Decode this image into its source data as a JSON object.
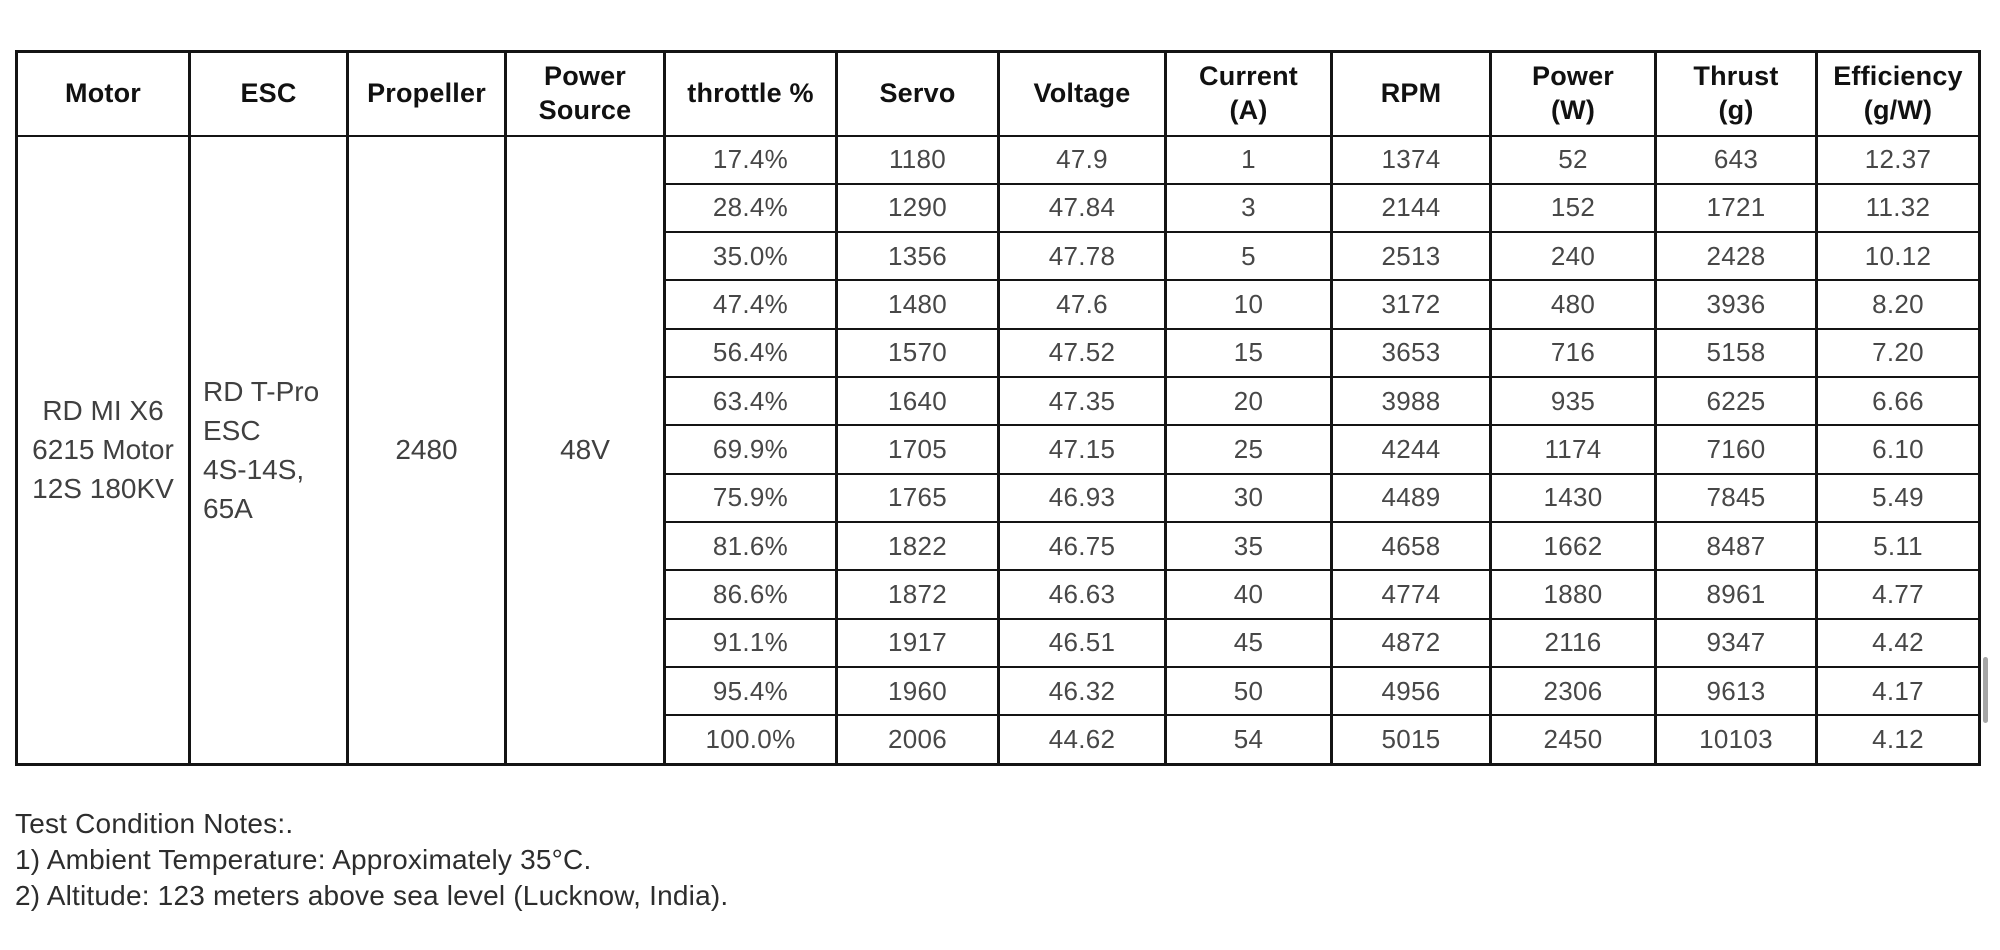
{
  "table": {
    "headers": [
      "Motor",
      "ESC",
      "Propeller",
      "Power\nSource",
      "throttle %",
      "Servo",
      "Voltage",
      "Current\n(A)",
      "RPM",
      "Power\n(W)",
      "Thrust\n(g)",
      "Efficiency\n(g/W)"
    ],
    "motor_lines": [
      "RD MI X6",
      "6215 Motor",
      "12S 180KV"
    ],
    "esc_lines": [
      "RD T-Pro",
      "ESC",
      "4S-14S,",
      "65A"
    ],
    "propeller": "2480",
    "power_source": "48V",
    "rows": [
      {
        "throttle": "17.4%",
        "servo": "1180",
        "voltage": "47.9",
        "current": "1",
        "rpm": "1374",
        "power": "52",
        "thrust": "643",
        "efficiency": "12.37"
      },
      {
        "throttle": "28.4%",
        "servo": "1290",
        "voltage": "47.84",
        "current": "3",
        "rpm": "2144",
        "power": "152",
        "thrust": "1721",
        "efficiency": "11.32"
      },
      {
        "throttle": "35.0%",
        "servo": "1356",
        "voltage": "47.78",
        "current": "5",
        "rpm": "2513",
        "power": "240",
        "thrust": "2428",
        "efficiency": "10.12"
      },
      {
        "throttle": "47.4%",
        "servo": "1480",
        "voltage": "47.6",
        "current": "10",
        "rpm": "3172",
        "power": "480",
        "thrust": "3936",
        "efficiency": "8.20"
      },
      {
        "throttle": "56.4%",
        "servo": "1570",
        "voltage": "47.52",
        "current": "15",
        "rpm": "3653",
        "power": "716",
        "thrust": "5158",
        "efficiency": "7.20"
      },
      {
        "throttle": "63.4%",
        "servo": "1640",
        "voltage": "47.35",
        "current": "20",
        "rpm": "3988",
        "power": "935",
        "thrust": "6225",
        "efficiency": "6.66"
      },
      {
        "throttle": "69.9%",
        "servo": "1705",
        "voltage": "47.15",
        "current": "25",
        "rpm": "4244",
        "power": "1174",
        "thrust": "7160",
        "efficiency": "6.10"
      },
      {
        "throttle": "75.9%",
        "servo": "1765",
        "voltage": "46.93",
        "current": "30",
        "rpm": "4489",
        "power": "1430",
        "thrust": "7845",
        "efficiency": "5.49"
      },
      {
        "throttle": "81.6%",
        "servo": "1822",
        "voltage": "46.75",
        "current": "35",
        "rpm": "4658",
        "power": "1662",
        "thrust": "8487",
        "efficiency": "5.11"
      },
      {
        "throttle": "86.6%",
        "servo": "1872",
        "voltage": "46.63",
        "current": "40",
        "rpm": "4774",
        "power": "1880",
        "thrust": "8961",
        "efficiency": "4.77"
      },
      {
        "throttle": "91.1%",
        "servo": "1917",
        "voltage": "46.51",
        "current": "45",
        "rpm": "4872",
        "power": "2116",
        "thrust": "9347",
        "efficiency": "4.42"
      },
      {
        "throttle": "95.4%",
        "servo": "1960",
        "voltage": "46.32",
        "current": "50",
        "rpm": "4956",
        "power": "2306",
        "thrust": "9613",
        "efficiency": "4.17"
      },
      {
        "throttle": "100.0%",
        "servo": "2006",
        "voltage": "44.62",
        "current": "54",
        "rpm": "5015",
        "power": "2450",
        "thrust": "10103",
        "efficiency": "4.12"
      }
    ]
  },
  "notes": {
    "title": "Test Condition Notes:.",
    "lines": [
      "1) Ambient Temperature: Approximately 35°C.",
      "2) Altitude: 123 meters above sea level (Lucknow, India)."
    ]
  },
  "colors": {
    "border": "#141414",
    "header_text": "#111111",
    "data_text": "#474747",
    "notes_text": "#2d2d2d",
    "scrollbar": "#a6a6a6",
    "background": "#ffffff"
  }
}
